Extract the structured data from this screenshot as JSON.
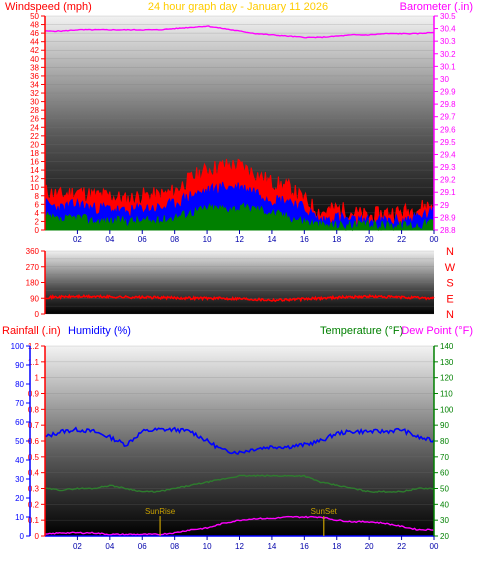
{
  "header": {
    "left_label": "Windspeed (mph)",
    "center_label": "24 hour graph day - January 11 2026",
    "right_label": "Barometer (.in)"
  },
  "colors": {
    "wind_gust": "#ff0000",
    "wind_avg": "#0000ff",
    "wind_low": "#008000",
    "barometer": "#ff00ff",
    "direction": "#ff0000",
    "humidity": "#0000ff",
    "temperature": "#2e7d2e",
    "dewpoint": "#ff00ff",
    "rainfall": "#0000ff",
    "sun_marker": "#c8a000",
    "left_axis": "#ff0000",
    "x_axis": "#0000aa",
    "title": "#ffcc00",
    "dew_label": "#ff00ff",
    "temp_label": "#008000"
  },
  "bottom_labels": {
    "rainfall": "Rainfall (.in)",
    "humidity": "Humidity (%)",
    "temperature": "Temperature (°F)",
    "dewpoint": "Dew Point (°F)"
  },
  "markers": {
    "sunrise": "SunRise",
    "sunset": "SunSet"
  },
  "chart_data": [
    {
      "type": "line",
      "xlabel": "",
      "x_ticks": [
        "02",
        "04",
        "06",
        "08",
        "10",
        "12",
        "14",
        "16",
        "18",
        "20",
        "22",
        "00"
      ],
      "y_left_ticks": [
        "0",
        "2",
        "4",
        "6",
        "8",
        "10",
        "12",
        "14",
        "16",
        "18",
        "20",
        "22",
        "24",
        "26",
        "28",
        "30",
        "32",
        "34",
        "36",
        "38",
        "40",
        "42",
        "44",
        "46",
        "48",
        "50"
      ],
      "y_right_ticks": [
        "28.8",
        "28.9",
        "29",
        "29.1",
        "29.2",
        "29.3",
        "29.4",
        "29.5",
        "29.6",
        "29.7",
        "29.8",
        "29.9",
        "30",
        "30.1",
        "30.2",
        "30.3",
        "30.4",
        "30.5"
      ],
      "ylim_left": [
        0,
        50
      ],
      "ylim_right": [
        28.8,
        30.5
      ],
      "x_hours": [
        0,
        1,
        2,
        3,
        4,
        5,
        6,
        7,
        8,
        9,
        10,
        11,
        12,
        13,
        14,
        15,
        16,
        17,
        18,
        19,
        20,
        21,
        22,
        23,
        24
      ],
      "series": [
        {
          "name": "Windspeed",
          "values": [
            9,
            8,
            9,
            8,
            8,
            7,
            8,
            8,
            9,
            12,
            14,
            15,
            15,
            13,
            11,
            10,
            7,
            4,
            5,
            4,
            3,
            4,
            4,
            5,
            6
          ]
        },
        {
          "name": "Windspeed",
          "values": [
            6,
            5,
            6,
            5,
            5,
            4,
            5,
            5,
            6,
            8,
            9,
            10,
            10,
            9,
            7,
            7,
            5,
            2,
            3,
            2,
            2,
            2,
            2,
            3,
            4
          ]
        },
        {
          "name": "Windspeed",
          "values": [
            3,
            2,
            3,
            2,
            2,
            2,
            2,
            2,
            3,
            4,
            5,
            5,
            5,
            5,
            4,
            3,
            2,
            1,
            1,
            1,
            1,
            1,
            1,
            1,
            2
          ]
        },
        {
          "name": "Barometer",
          "values": [
            30.38,
            30.38,
            30.39,
            30.39,
            30.39,
            30.39,
            30.39,
            30.39,
            30.4,
            30.41,
            30.42,
            30.4,
            30.38,
            30.36,
            30.35,
            30.34,
            30.33,
            30.33,
            30.34,
            30.35,
            30.35,
            30.36,
            30.36,
            30.36,
            30.37
          ]
        }
      ]
    },
    {
      "type": "line",
      "y_ticks": [
        "0",
        "90",
        "180",
        "270",
        "360"
      ],
      "ylim": [
        0,
        360
      ],
      "direction_labels": [
        "N",
        "W",
        "S",
        "E",
        "N"
      ],
      "x_hours": [
        0,
        2,
        4,
        6,
        8,
        10,
        12,
        14,
        16,
        18,
        20,
        22,
        24
      ],
      "series": [
        {
          "name": "Wind Direction",
          "values": [
            95,
            100,
            98,
            95,
            92,
            90,
            88,
            80,
            85,
            95,
            100,
            95,
            90
          ]
        }
      ]
    },
    {
      "type": "line",
      "x_ticks": [
        "02",
        "04",
        "06",
        "08",
        "10",
        "12",
        "14",
        "16",
        "18",
        "20",
        "22",
        "00"
      ],
      "y_rain_ticks": [
        "0",
        "0.1",
        "0.2",
        "0.3",
        "0.4",
        "0.5",
        "0.6",
        "0.7",
        "0.8",
        "0.9",
        "1",
        "1.1",
        "1.2"
      ],
      "y_hum_ticks": [
        "0",
        "10",
        "20",
        "30",
        "40",
        "50",
        "60",
        "70",
        "80",
        "90",
        "100"
      ],
      "y_temp_ticks": [
        "20",
        "30",
        "40",
        "50",
        "60",
        "70",
        "80",
        "90",
        "100",
        "110",
        "120",
        "130",
        "140"
      ],
      "ylim_rain": [
        0,
        1.2
      ],
      "ylim_hum": [
        0,
        100
      ],
      "ylim_temp": [
        20,
        140
      ],
      "x_hours": [
        0,
        1,
        2,
        3,
        4,
        5,
        6,
        7,
        8,
        9,
        10,
        11,
        12,
        13,
        14,
        15,
        16,
        17,
        18,
        19,
        20,
        21,
        22,
        23,
        24
      ],
      "sunrise_hour": 7.1,
      "sunset_hour": 17.2,
      "series": [
        {
          "name": "Humidity",
          "values": [
            52,
            55,
            56,
            55,
            52,
            48,
            55,
            56,
            56,
            55,
            50,
            45,
            44,
            46,
            47,
            47,
            48,
            50,
            54,
            55,
            55,
            55,
            56,
            52,
            50
          ]
        },
        {
          "name": "Temperature",
          "values": [
            50,
            49,
            50,
            50,
            52,
            50,
            48,
            48,
            50,
            52,
            54,
            56,
            58,
            58,
            58,
            58,
            58,
            54,
            52,
            50,
            48,
            48,
            48,
            50,
            50
          ]
        },
        {
          "name": "Dew Point",
          "values": [
            21,
            22,
            22,
            22,
            21,
            21,
            21,
            21,
            22,
            24,
            25,
            28,
            30,
            31,
            31,
            32,
            32,
            32,
            30,
            29,
            29,
            28,
            26,
            24,
            24
          ]
        },
        {
          "name": "Rainfall",
          "values": [
            0,
            0,
            0,
            0,
            0,
            0,
            0,
            0,
            0,
            0,
            0,
            0,
            0,
            0,
            0,
            0,
            0,
            0,
            0,
            0,
            0,
            0,
            0,
            0,
            0
          ]
        }
      ]
    }
  ]
}
